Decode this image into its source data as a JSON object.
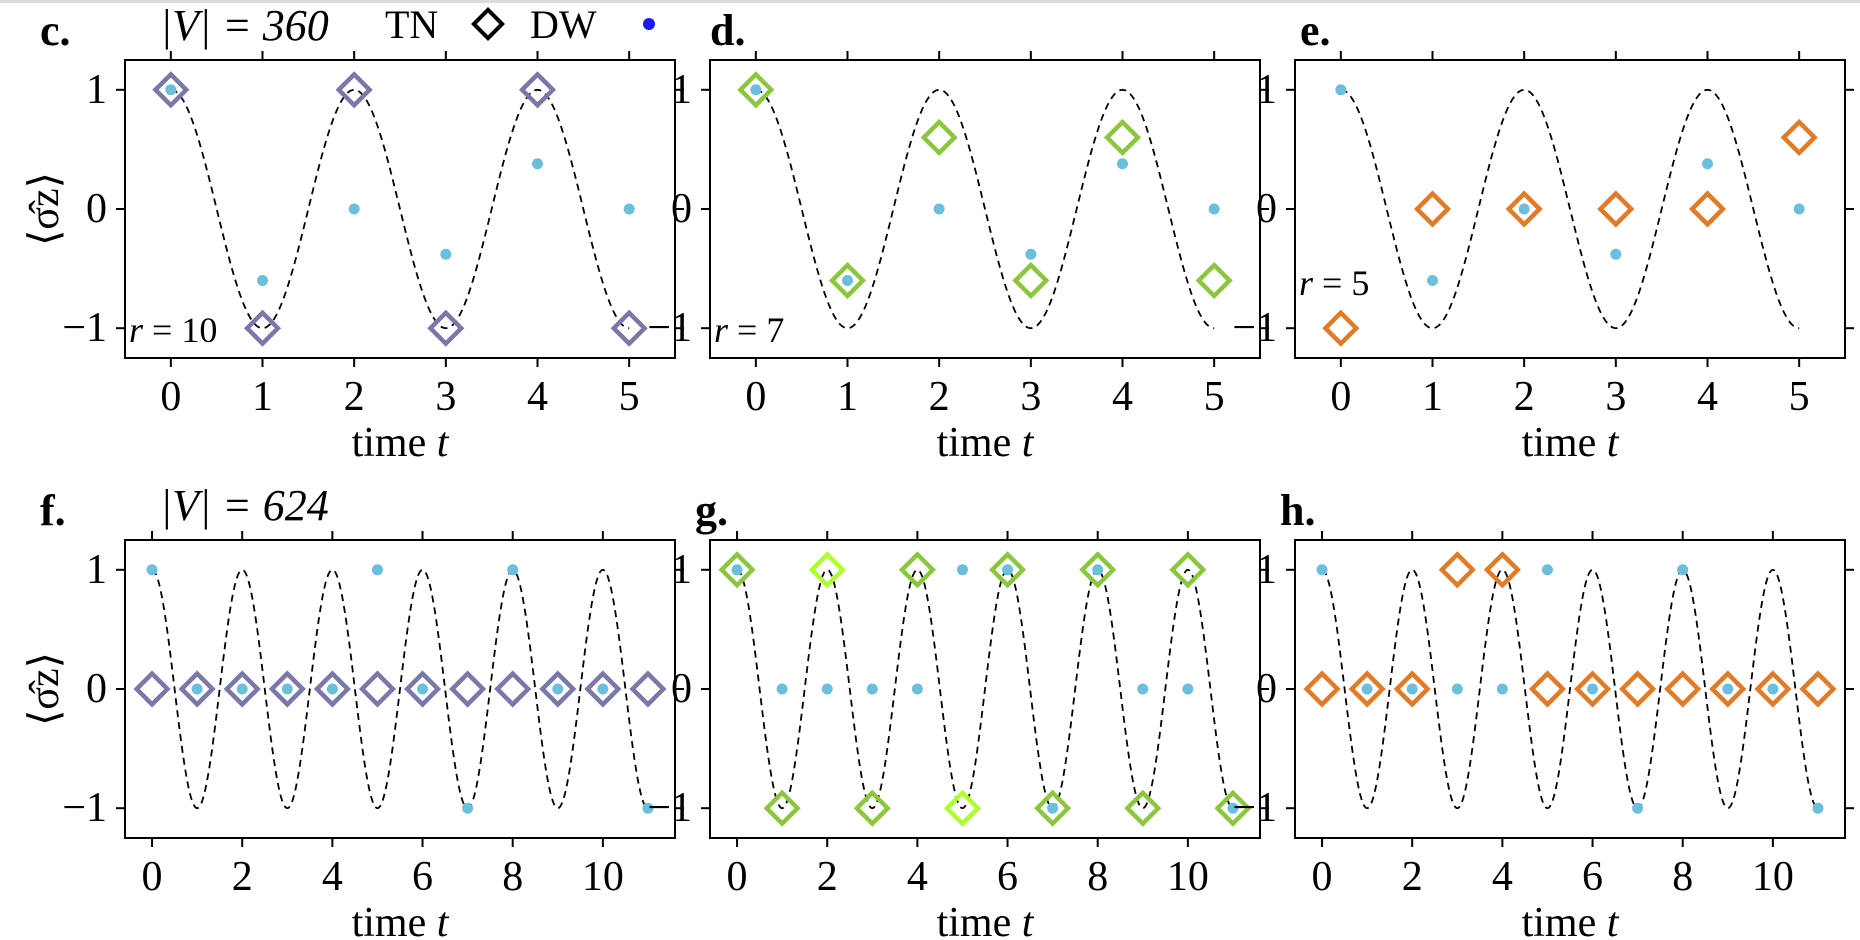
{
  "header": {
    "v360": "|V| = 360",
    "v624": "|V| = 624",
    "legend": {
      "tn": "TN",
      "dw": "DW"
    }
  },
  "colors": {
    "dw_dot": "#6bbfdc",
    "purple": "#7a78a8",
    "green_yellow": "#8cc63f",
    "green_bright": "#adff2f",
    "orange": "#e07b28",
    "legend_dot": "#1a17ff",
    "curve": "#000000"
  },
  "chart_data": [
    {
      "panel": "c.",
      "type": "scatter",
      "r_label": "r = 10",
      "xlabel": "time t",
      "ylabel": "⟨σ̂z⟩",
      "xlim": [
        -0.5,
        5.5
      ],
      "ylim": [
        -1.25,
        1.25
      ],
      "xticks": [
        0,
        1,
        2,
        3,
        4,
        5
      ],
      "yticks": [
        -1,
        0,
        1
      ],
      "exact": {
        "style": "dashed",
        "function": "cos(pi t)"
      },
      "series": [
        {
          "name": "TN",
          "marker": "diamond",
          "color": "#7a78a8",
          "points": [
            [
              0,
              1
            ],
            [
              1,
              -1
            ],
            [
              2,
              1
            ],
            [
              3,
              -1
            ],
            [
              4,
              1
            ],
            [
              5,
              -1
            ]
          ]
        },
        {
          "name": "DW",
          "marker": "dot",
          "color": "#6bbfdc",
          "points": [
            [
              0,
              1
            ],
            [
              1,
              -0.6
            ],
            [
              2,
              0
            ],
            [
              3,
              -0.38
            ],
            [
              4,
              0.38
            ],
            [
              5,
              0
            ]
          ]
        }
      ]
    },
    {
      "panel": "d.",
      "type": "scatter",
      "r_label": "r = 7",
      "xlabel": "time t",
      "ylabel": "",
      "xlim": [
        -0.5,
        5.5
      ],
      "ylim": [
        -1.25,
        1.25
      ],
      "xticks": [
        0,
        1,
        2,
        3,
        4,
        5
      ],
      "yticks": [
        -1,
        0,
        1
      ],
      "exact": {
        "style": "dashed",
        "function": "cos(pi t)"
      },
      "series": [
        {
          "name": "TN",
          "marker": "diamond",
          "color": "#8cc63f",
          "points": [
            [
              0,
              1
            ],
            [
              1,
              -0.6
            ],
            [
              2,
              0.6
            ],
            [
              3,
              -0.6
            ],
            [
              4,
              0.6
            ],
            [
              5,
              -0.6
            ]
          ]
        },
        {
          "name": "DW",
          "marker": "dot",
          "color": "#6bbfdc",
          "points": [
            [
              0,
              1
            ],
            [
              1,
              -0.6
            ],
            [
              2,
              0
            ],
            [
              3,
              -0.38
            ],
            [
              4,
              0.38
            ],
            [
              5,
              0
            ]
          ]
        }
      ]
    },
    {
      "panel": "e.",
      "type": "scatter",
      "r_label": "r = 5",
      "xlabel": "time t",
      "ylabel": "",
      "xlim": [
        -0.5,
        5.5
      ],
      "ylim": [
        -1.25,
        1.25
      ],
      "xticks": [
        0,
        1,
        2,
        3,
        4,
        5
      ],
      "yticks": [
        -1,
        0,
        1
      ],
      "exact": {
        "style": "dashed",
        "function": "cos(pi t)"
      },
      "series": [
        {
          "name": "TN",
          "marker": "diamond",
          "color": "#e07b28",
          "points": [
            [
              0,
              -1
            ],
            [
              1,
              0
            ],
            [
              2,
              0
            ],
            [
              3,
              0
            ],
            [
              4,
              0
            ],
            [
              5,
              0.6
            ]
          ]
        },
        {
          "name": "DW",
          "marker": "dot",
          "color": "#6bbfdc",
          "points": [
            [
              0,
              1
            ],
            [
              1,
              -0.6
            ],
            [
              2,
              0
            ],
            [
              3,
              -0.38
            ],
            [
              4,
              0.38
            ],
            [
              5,
              0
            ]
          ]
        }
      ]
    },
    {
      "panel": "f.",
      "type": "scatter",
      "r_label": "",
      "xlabel": "time t",
      "ylabel": "⟨σ̂z⟩",
      "xlim": [
        -0.6,
        11.6
      ],
      "ylim": [
        -1.25,
        1.25
      ],
      "xticks": [
        0,
        2,
        4,
        6,
        8,
        10
      ],
      "yticks": [
        -1,
        0,
        1
      ],
      "exact": {
        "style": "dashed",
        "function": "cos(pi t)"
      },
      "series": [
        {
          "name": "TN",
          "marker": "diamond",
          "color": "#7a78a8",
          "points": [
            [
              0,
              0
            ],
            [
              1,
              0
            ],
            [
              2,
              0
            ],
            [
              3,
              0
            ],
            [
              4,
              0
            ],
            [
              5,
              0
            ],
            [
              6,
              0
            ],
            [
              7,
              0
            ],
            [
              8,
              0
            ],
            [
              9,
              0
            ],
            [
              10,
              0
            ],
            [
              11,
              0
            ]
          ]
        },
        {
          "name": "DW",
          "marker": "dot",
          "color": "#6bbfdc",
          "points": [
            [
              0,
              1
            ],
            [
              1,
              0
            ],
            [
              2,
              0
            ],
            [
              3,
              0
            ],
            [
              4,
              0
            ],
            [
              5,
              1
            ],
            [
              6,
              0
            ],
            [
              7,
              -1
            ],
            [
              8,
              1
            ],
            [
              9,
              0
            ],
            [
              10,
              0
            ],
            [
              11,
              -1
            ]
          ]
        }
      ]
    },
    {
      "panel": "g.",
      "type": "scatter",
      "r_label": "",
      "xlabel": "time t",
      "ylabel": "",
      "xlim": [
        -0.6,
        11.6
      ],
      "ylim": [
        -1.25,
        1.25
      ],
      "xticks": [
        0,
        2,
        4,
        6,
        8,
        10
      ],
      "yticks": [
        -1,
        0,
        1
      ],
      "exact": {
        "style": "dashed",
        "function": "cos(pi t)"
      },
      "series": [
        {
          "name": "TN",
          "marker": "diamond",
          "color": "#8cc63f",
          "points": [
            [
              0,
              1
            ],
            [
              1,
              -1
            ],
            [
              2,
              1
            ],
            [
              3,
              -1
            ],
            [
              4,
              1
            ],
            [
              5,
              -1
            ],
            [
              6,
              1
            ],
            [
              7,
              -1
            ],
            [
              8,
              1
            ],
            [
              9,
              -1
            ],
            [
              10,
              1
            ],
            [
              11,
              -1
            ]
          ],
          "highlight_color": "#adff2f",
          "highlight_x": [
            2,
            5
          ]
        },
        {
          "name": "DW",
          "marker": "dot",
          "color": "#6bbfdc",
          "points": [
            [
              0,
              1
            ],
            [
              1,
              0
            ],
            [
              2,
              0
            ],
            [
              3,
              0
            ],
            [
              4,
              0
            ],
            [
              5,
              1
            ],
            [
              6,
              1
            ],
            [
              7,
              -1
            ],
            [
              8,
              1
            ],
            [
              9,
              0
            ],
            [
              10,
              0
            ],
            [
              11,
              -1
            ]
          ]
        }
      ]
    },
    {
      "panel": "h.",
      "type": "scatter",
      "r_label": "",
      "xlabel": "time t",
      "ylabel": "",
      "xlim": [
        -0.6,
        11.6
      ],
      "ylim": [
        -1.25,
        1.25
      ],
      "xticks": [
        0,
        2,
        4,
        6,
        8,
        10
      ],
      "yticks": [
        -1,
        0,
        1
      ],
      "exact": {
        "style": "dashed",
        "function": "cos(pi t)"
      },
      "series": [
        {
          "name": "TN",
          "marker": "diamond",
          "color": "#e07b28",
          "points": [
            [
              0,
              0
            ],
            [
              1,
              0
            ],
            [
              2,
              0
            ],
            [
              3,
              1
            ],
            [
              4,
              1
            ],
            [
              5,
              0
            ],
            [
              6,
              0
            ],
            [
              7,
              0
            ],
            [
              8,
              0
            ],
            [
              9,
              0
            ],
            [
              10,
              0
            ],
            [
              11,
              0
            ]
          ]
        },
        {
          "name": "DW",
          "marker": "dot",
          "color": "#6bbfdc",
          "points": [
            [
              0,
              1
            ],
            [
              1,
              0
            ],
            [
              2,
              0
            ],
            [
              3,
              0
            ],
            [
              4,
              0
            ],
            [
              5,
              1
            ],
            [
              6,
              0
            ],
            [
              7,
              -1
            ],
            [
              8,
              1
            ],
            [
              9,
              0
            ],
            [
              10,
              0
            ],
            [
              11,
              -1
            ]
          ]
        }
      ]
    }
  ]
}
